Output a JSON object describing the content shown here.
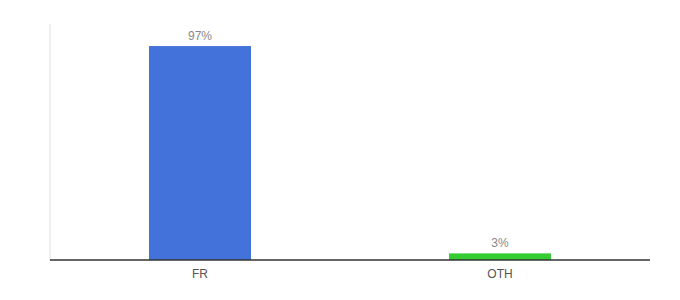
{
  "chart_data": {
    "type": "bar",
    "categories": [
      "FR",
      "OTH"
    ],
    "values": [
      97,
      3
    ],
    "colors": [
      "#4472db",
      "#33cc33"
    ],
    "value_labels": [
      "97%",
      "3%"
    ],
    "data_labels": true,
    "ylim": [
      0,
      107
    ],
    "tick_labels": "x"
  }
}
